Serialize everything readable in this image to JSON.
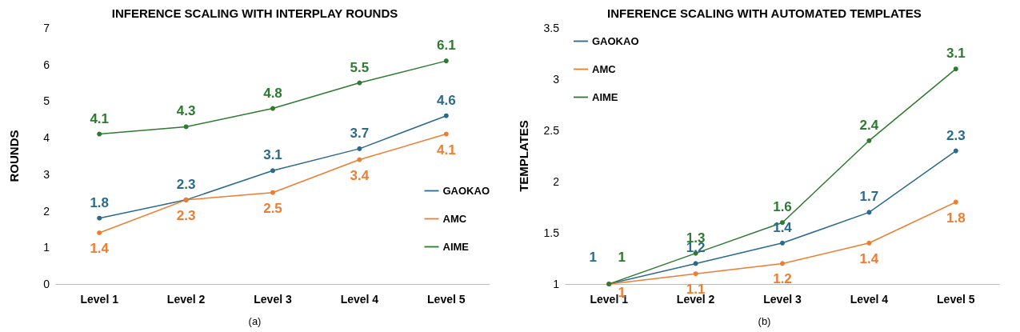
{
  "chart_data": [
    {
      "type": "line",
      "title": "INFERENCE SCALING WITH INTERPLAY ROUNDS",
      "ylabel": "ROUNDS",
      "categories": [
        "Level 1",
        "Level 2",
        "Level 3",
        "Level 4",
        "Level 5"
      ],
      "series": [
        {
          "name": "GAOKAO",
          "color": "#2a6a8c",
          "values": [
            1.8,
            2.3,
            3.1,
            3.7,
            4.6
          ]
        },
        {
          "name": "AMC",
          "color": "#ed7d31",
          "values": [
            1.4,
            2.3,
            2.5,
            3.4,
            4.1
          ]
        },
        {
          "name": "AIME",
          "color": "#2e7a30",
          "values": [
            4.1,
            4.3,
            4.8,
            5.5,
            6.1
          ]
        }
      ],
      "ylim": [
        0,
        7
      ],
      "yticks": [
        0,
        1,
        2,
        3,
        4,
        5,
        6,
        7
      ],
      "grid": false,
      "legend": "bottom right",
      "marker": "circle",
      "line_style": "solid",
      "data_labels": true,
      "annotations": [
        "(a)"
      ]
    },
    {
      "type": "line",
      "title": "INFERENCE SCALING WITH AUTOMATED TEMPLATES",
      "ylabel": "TEMPLATES",
      "categories": [
        "Level 1",
        "Level 2",
        "Level 3",
        "Level 4",
        "Level 5"
      ],
      "series": [
        {
          "name": "GAOKAO",
          "color": "#2a6a8c",
          "values": [
            1,
            1.2,
            1.4,
            1.7,
            2.3
          ]
        },
        {
          "name": "AMC",
          "color": "#ed7d31",
          "values": [
            1,
            1.1,
            1.2,
            1.4,
            1.8
          ]
        },
        {
          "name": "AIME",
          "color": "#2e7a30",
          "values": [
            1,
            1.3,
            1.6,
            2.4,
            3.1
          ]
        }
      ],
      "ylim": [
        1,
        3.5
      ],
      "yticks": [
        1,
        1.5,
        2,
        2.5,
        3,
        3.5
      ],
      "grid": false,
      "legend": "top left",
      "marker": "circle",
      "line_style": "solid",
      "data_labels": true,
      "annotations": [
        "(b)"
      ]
    }
  ]
}
